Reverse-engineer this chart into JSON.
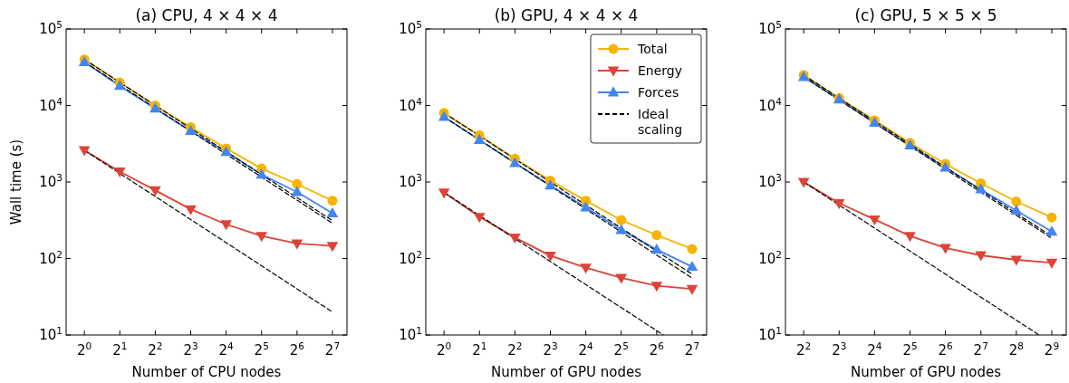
{
  "chart_data": [
    {
      "type": "line",
      "title": "(a) CPU, 4 × 4 × 4",
      "xlabel": "Number of CPU nodes",
      "ylabel": "Wall time (s)",
      "log": "xy",
      "legend": false,
      "grid": false,
      "xlim": [
        0.7,
        170
      ],
      "xticks": [
        {
          "value": 1,
          "label": "2$^{0}$"
        },
        {
          "value": 2,
          "label": "2$^{1}$"
        },
        {
          "value": 4,
          "label": "2$^{2}$"
        },
        {
          "value": 8,
          "label": "2$^{3}$"
        },
        {
          "value": 16,
          "label": "2$^{4}$"
        },
        {
          "value": 32,
          "label": "2$^{5}$"
        },
        {
          "value": 64,
          "label": "2$^{6}$"
        },
        {
          "value": 128,
          "label": "2$^{7}$"
        }
      ],
      "ylim": [
        10,
        100000
      ],
      "yticks": [
        {
          "value": 10,
          "label": "10$^{1}$"
        },
        {
          "value": 100,
          "label": "10$^{2}$"
        },
        {
          "value": 1000,
          "label": "10$^{3}$"
        },
        {
          "value": 10000,
          "label": "10$^{4}$"
        },
        {
          "value": 100000,
          "label": "10$^{5}$"
        }
      ],
      "x": [
        1,
        2,
        4,
        8,
        16,
        32,
        64,
        128
      ],
      "series": [
        {
          "color": "#f4b400",
          "marker": "circle",
          "line_style": "solid",
          "values": [
            40000,
            20000,
            10000,
            5200,
            2750,
            1500,
            940,
            570
          ]
        },
        {
          "color": "#db4437",
          "marker": "triangle_down",
          "line_style": "solid",
          "values": [
            2600,
            1370,
            780,
            440,
            280,
            197,
            157,
            146
          ]
        },
        {
          "color": "#4285f4",
          "marker": "triangle",
          "line_style": "solid",
          "values": [
            37000,
            18000,
            9100,
            4640,
            2470,
            1250,
            740,
            390
          ]
        },
        {
          "color": "#000000",
          "marker": "none",
          "line_style": "dashed",
          "x": [
            1,
            128
          ],
          "values": [
            40000,
            312.5
          ]
        },
        {
          "color": "#000000",
          "marker": "none",
          "line_style": "dashed",
          "x": [
            1,
            128
          ],
          "values": [
            37000,
            289
          ]
        },
        {
          "color": "#000000",
          "marker": "none",
          "line_style": "dashed",
          "x": [
            1,
            128
          ],
          "values": [
            2600,
            20
          ]
        }
      ]
    },
    {
      "type": "line",
      "title": "(b) GPU, 4 × 4 × 4",
      "xlabel": "Number of GPU nodes",
      "log": "xy",
      "legend": "top right",
      "grid": false,
      "xlim": [
        0.7,
        170
      ],
      "xticks": [
        {
          "value": 1,
          "label": "2$^{0}$"
        },
        {
          "value": 2,
          "label": "2$^{1}$"
        },
        {
          "value": 4,
          "label": "2$^{2}$"
        },
        {
          "value": 8,
          "label": "2$^{3}$"
        },
        {
          "value": 16,
          "label": "2$^{4}$"
        },
        {
          "value": 32,
          "label": "2$^{5}$"
        },
        {
          "value": 64,
          "label": "2$^{6}$"
        },
        {
          "value": 128,
          "label": "2$^{7}$"
        }
      ],
      "ylim": [
        10,
        100000
      ],
      "yticks": [
        {
          "value": 10,
          "label": "10$^{1}$"
        },
        {
          "value": 100,
          "label": "10$^{2}$"
        },
        {
          "value": 1000,
          "label": "10$^{3}$"
        },
        {
          "value": 10000,
          "label": "10$^{4}$"
        },
        {
          "value": 100000,
          "label": "10$^{5}$"
        }
      ],
      "x": [
        1,
        2,
        4,
        8,
        16,
        32,
        64,
        128
      ],
      "series": [
        {
          "name": "Total",
          "color": "#f4b400",
          "marker": "circle",
          "line_style": "solid",
          "values": [
            8000,
            4060,
            2020,
            1045,
            570,
            318,
            202,
            133
          ]
        },
        {
          "name": "Energy",
          "color": "#db4437",
          "marker": "triangle_down",
          "line_style": "solid",
          "values": [
            730,
            350,
            188,
            109,
            76,
            56,
            44,
            40
          ]
        },
        {
          "name": "Forces",
          "color": "#4285f4",
          "marker": "triangle",
          "line_style": "solid",
          "values": [
            7100,
            3540,
            1770,
            900,
            465,
            236,
            131,
            78
          ]
        },
        {
          "name": "Ideal scaling",
          "color": "#000000",
          "marker": "none",
          "line_style": "dashed",
          "x": [
            1,
            128
          ],
          "values": [
            8000,
            62.5
          ]
        },
        {
          "color": "#000000",
          "marker": "none",
          "line_style": "dashed",
          "x": [
            1,
            128
          ],
          "values": [
            7100,
            55.5
          ]
        },
        {
          "color": "#000000",
          "marker": "none",
          "line_style": "dashed",
          "x": [
            1,
            73
          ],
          "values": [
            730,
            10
          ]
        }
      ]
    },
    {
      "type": "line",
      "title": "(c) GPU, 5 × 5 × 5",
      "xlabel": "Number of GPU nodes",
      "log": "xy",
      "legend": false,
      "grid": false,
      "xlim": [
        2.8,
        680
      ],
      "xticks": [
        {
          "value": 4,
          "label": "2$^{2}$"
        },
        {
          "value": 8,
          "label": "2$^{3}$"
        },
        {
          "value": 16,
          "label": "2$^{4}$"
        },
        {
          "value": 32,
          "label": "2$^{5}$"
        },
        {
          "value": 64,
          "label": "2$^{6}$"
        },
        {
          "value": 128,
          "label": "2$^{7}$"
        },
        {
          "value": 256,
          "label": "2$^{8}$"
        },
        {
          "value": 512,
          "label": "2$^{9}$"
        }
      ],
      "ylim": [
        10,
        100000
      ],
      "yticks": [
        {
          "value": 10,
          "label": "10$^{1}$"
        },
        {
          "value": 100,
          "label": "10$^{2}$"
        },
        {
          "value": 1000,
          "label": "10$^{3}$"
        },
        {
          "value": 10000,
          "label": "10$^{4}$"
        },
        {
          "value": 100000,
          "label": "10$^{5}$"
        }
      ],
      "x": [
        4,
        8,
        16,
        32,
        64,
        128,
        256,
        512
      ],
      "series": [
        {
          "color": "#f4b400",
          "marker": "circle",
          "line_style": "solid",
          "values": [
            25000,
            12500,
            6400,
            3240,
            1720,
            960,
            556,
            344
          ]
        },
        {
          "color": "#db4437",
          "marker": "triangle_down",
          "line_style": "solid",
          "values": [
            1000,
            530,
            324,
            197,
            137,
            110,
            96,
            88
          ]
        },
        {
          "color": "#4285f4",
          "marker": "triangle",
          "line_style": "solid",
          "values": [
            23600,
            12000,
            5930,
            3000,
            1540,
            800,
            424,
            225
          ]
        },
        {
          "color": "#000000",
          "marker": "none",
          "line_style": "dashed",
          "x": [
            4,
            512
          ],
          "values": [
            25000,
            195
          ]
        },
        {
          "color": "#000000",
          "marker": "none",
          "line_style": "dashed",
          "x": [
            4,
            512
          ],
          "values": [
            23600,
            184
          ]
        },
        {
          "color": "#000000",
          "marker": "none",
          "line_style": "dashed",
          "x": [
            4,
            400
          ],
          "values": [
            1000,
            10
          ]
        }
      ]
    }
  ]
}
